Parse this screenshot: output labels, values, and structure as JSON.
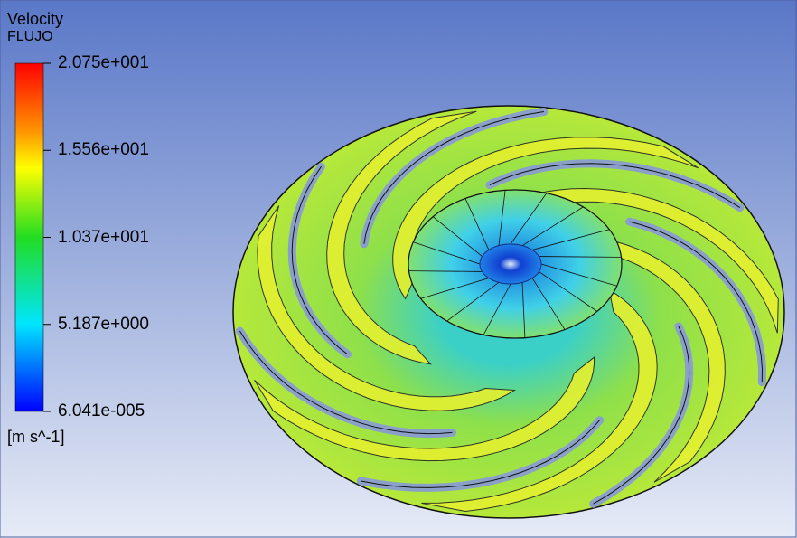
{
  "legend": {
    "title": "Velocity",
    "subtitle": "FLUJO",
    "ticks": [
      "2.075e+001",
      "1.556e+001",
      "1.037e+001",
      "5.187e+000",
      "6.041e-005"
    ],
    "unit": "[m s^-1]"
  }
}
